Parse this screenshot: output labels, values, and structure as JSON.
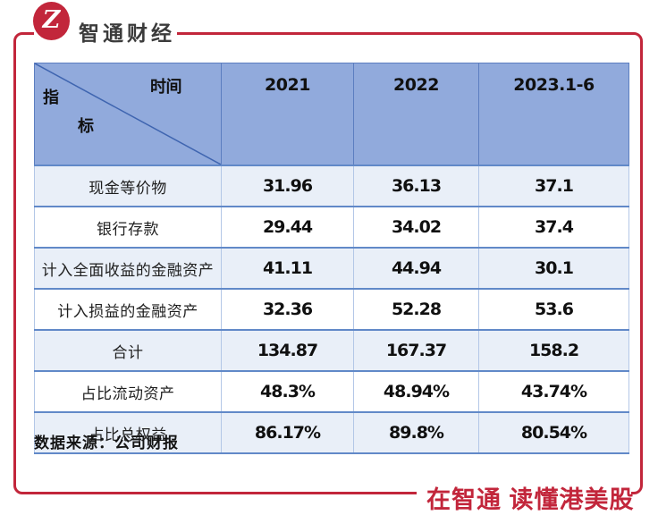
{
  "brand": {
    "logo_glyph": "Z",
    "title": "智通财经",
    "tagline": "在智通 读懂港美股"
  },
  "table": {
    "corner": {
      "time_label": "时间",
      "indicator_char_top": "指",
      "indicator_char_bottom": "标"
    },
    "columns": [
      "2021",
      "2022",
      "2023.1-6"
    ],
    "rows": [
      {
        "label": "现金等价物",
        "values": [
          "31.96",
          "36.13",
          "37.1"
        ]
      },
      {
        "label": "银行存款",
        "values": [
          "29.44",
          "34.02",
          "37.4"
        ]
      },
      {
        "label": "计入全面收益的金融资产",
        "values": [
          "41.11",
          "44.94",
          "30.1"
        ]
      },
      {
        "label": "计入损益的金融资产",
        "values": [
          "32.36",
          "52.28",
          "53.6"
        ]
      },
      {
        "label": "合计",
        "values": [
          "134.87",
          "167.37",
          "158.2"
        ]
      },
      {
        "label": "占比流动资产",
        "values": [
          "48.3%",
          "48.94%",
          "43.74%"
        ]
      },
      {
        "label": "占比总权益",
        "values": [
          "86.17%",
          "89.8%",
          "80.54%"
        ]
      }
    ]
  },
  "footer": {
    "source": "数据来源：公司财报"
  },
  "colors": {
    "accent_red": "#C2263B",
    "header_blue": "#91AADC",
    "row_alt_blue": "#E9EFF8",
    "grid_blue": "#6189C8",
    "diagonal_blue": "#3F65B0"
  },
  "chart_data": {
    "type": "table",
    "title": "",
    "corner_labels": {
      "columns_axis": "时间",
      "rows_axis": "指标"
    },
    "categories": [
      "2021",
      "2022",
      "2023.1-6"
    ],
    "series": [
      {
        "name": "现金等价物",
        "values": [
          31.96,
          36.13,
          37.1
        ]
      },
      {
        "name": "银行存款",
        "values": [
          29.44,
          34.02,
          37.4
        ]
      },
      {
        "name": "计入全面收益的金融资产",
        "values": [
          41.11,
          44.94,
          30.1
        ]
      },
      {
        "name": "计入损益的金融资产",
        "values": [
          32.36,
          52.28,
          53.6
        ]
      },
      {
        "name": "合计",
        "values": [
          134.87,
          167.37,
          158.2
        ]
      },
      {
        "name": "占比流动资产",
        "values": [
          "48.3%",
          "48.94%",
          "43.74%"
        ]
      },
      {
        "name": "占比总权益",
        "values": [
          "86.17%",
          "89.8%",
          "80.54%"
        ]
      }
    ],
    "source": "数据来源：公司财报"
  }
}
